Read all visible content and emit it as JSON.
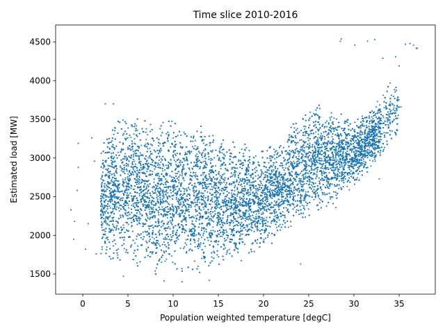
{
  "chart_data": {
    "type": "scatter",
    "title": "Time slice 2010-2016",
    "xlabel": "Population weighted temperature [degC]",
    "ylabel": "Estimated load [MW]",
    "xlim": [
      -3,
      39
    ],
    "ylim": [
      1240,
      4720
    ],
    "xticks": [
      0,
      5,
      10,
      15,
      20,
      25,
      30,
      35
    ],
    "yticks": [
      1500,
      2000,
      2500,
      3000,
      3500,
      4000,
      4500
    ],
    "grid": false,
    "legend": "none",
    "colors": {
      "marker": "#1f77b4"
    },
    "marker_size": 1.5,
    "approx_point_count": 61000,
    "density_envelope": [
      {
        "x": 2,
        "y_low": 1750,
        "y_high": 3200
      },
      {
        "x": 4,
        "y_low": 1650,
        "y_high": 3550
      },
      {
        "x": 6,
        "y_low": 1580,
        "y_high": 3550
      },
      {
        "x": 8,
        "y_low": 1530,
        "y_high": 3500
      },
      {
        "x": 10,
        "y_low": 1520,
        "y_high": 3450
      },
      {
        "x": 12,
        "y_low": 1540,
        "y_high": 3420
      },
      {
        "x": 14,
        "y_low": 1570,
        "y_high": 3350
      },
      {
        "x": 16,
        "y_low": 1620,
        "y_high": 3250
      },
      {
        "x": 18,
        "y_low": 1720,
        "y_high": 3150
      },
      {
        "x": 20,
        "y_low": 1850,
        "y_high": 3100
      },
      {
        "x": 22,
        "y_low": 2000,
        "y_high": 3250
      },
      {
        "x": 24,
        "y_low": 2150,
        "y_high": 3550
      },
      {
        "x": 26,
        "y_low": 2300,
        "y_high": 3700
      },
      {
        "x": 28,
        "y_low": 2450,
        "y_high": 3600
      },
      {
        "x": 30,
        "y_low": 2650,
        "y_high": 3500
      },
      {
        "x": 32,
        "y_low": 2900,
        "y_high": 3650
      },
      {
        "x": 34,
        "y_low": 3200,
        "y_high": 3950
      }
    ],
    "outliers": [
      {
        "x": -1.3,
        "y": 2330
      },
      {
        "x": -1.0,
        "y": 1950
      },
      {
        "x": -0.9,
        "y": 2180
      },
      {
        "x": -0.6,
        "y": 2580
      },
      {
        "x": -0.5,
        "y": 2880
      },
      {
        "x": -0.5,
        "y": 3190
      },
      {
        "x": 0.3,
        "y": 1820
      },
      {
        "x": 0.6,
        "y": 2150
      },
      {
        "x": 1.0,
        "y": 3260
      },
      {
        "x": 1.3,
        "y": 2960
      },
      {
        "x": 1.5,
        "y": 1760
      },
      {
        "x": 2.5,
        "y": 3700
      },
      {
        "x": 3.4,
        "y": 3700
      },
      {
        "x": 4.5,
        "y": 1470
      },
      {
        "x": 9.0,
        "y": 1410
      },
      {
        "x": 11.0,
        "y": 1400
      },
      {
        "x": 14.0,
        "y": 1420
      },
      {
        "x": 24.1,
        "y": 1630
      },
      {
        "x": 28.5,
        "y": 4510
      },
      {
        "x": 28.6,
        "y": 4540
      },
      {
        "x": 30.1,
        "y": 4460
      },
      {
        "x": 31.5,
        "y": 4510
      },
      {
        "x": 32.3,
        "y": 4530
      },
      {
        "x": 33.2,
        "y": 4290
      },
      {
        "x": 34.0,
        "y": 3970
      },
      {
        "x": 34.6,
        "y": 4310
      },
      {
        "x": 35.0,
        "y": 4190
      },
      {
        "x": 35.7,
        "y": 4470
      },
      {
        "x": 36.2,
        "y": 4480
      },
      {
        "x": 36.6,
        "y": 4460
      },
      {
        "x": 36.9,
        "y": 4420
      },
      {
        "x": 37.0,
        "y": 4420
      },
      {
        "x": 35.2,
        "y": 3660
      },
      {
        "x": 32.6,
        "y": 3730
      },
      {
        "x": 33.3,
        "y": 3110
      },
      {
        "x": 32.8,
        "y": 2730
      },
      {
        "x": 28.0,
        "y": 2360
      },
      {
        "x": 29.5,
        "y": 2590
      }
    ]
  }
}
